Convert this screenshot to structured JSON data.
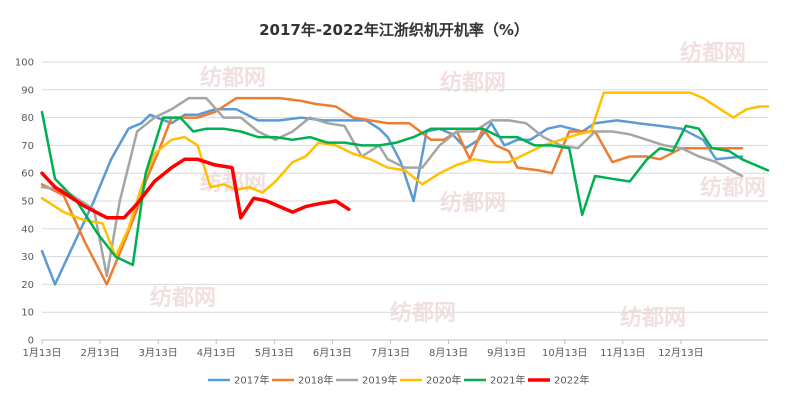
{
  "chart_data": {
    "type": "line",
    "title": "2017年-2022年江浙织机开机率（%）",
    "watermark": "纺都网",
    "ylim": [
      0,
      100
    ],
    "y_ticks": [
      0,
      10,
      20,
      30,
      40,
      50,
      60,
      70,
      80,
      90,
      100
    ],
    "x_ticks": [
      "1月13日",
      "2月13日",
      "3月13日",
      "4月13日",
      "5月13日",
      "6月13日",
      "7月13日",
      "8月13日",
      "9月13日",
      "10月13日",
      "11月13日",
      "12月13日"
    ],
    "grid": true,
    "legend_position": "bottom",
    "series": [
      {
        "name": "2017年",
        "color": "#5b9bd5",
        "width": 2.5,
        "points": [
          [
            0,
            32
          ],
          [
            0.3,
            20
          ],
          [
            1.2,
            50
          ],
          [
            1.6,
            65
          ],
          [
            2.0,
            76
          ],
          [
            2.3,
            78
          ],
          [
            2.5,
            81
          ],
          [
            3.0,
            78
          ],
          [
            3.3,
            81
          ],
          [
            3.6,
            81
          ],
          [
            4.0,
            83
          ],
          [
            4.5,
            83
          ],
          [
            5.0,
            79
          ],
          [
            5.5,
            79
          ],
          [
            6.0,
            80
          ],
          [
            6.5,
            79
          ],
          [
            7.0,
            79
          ],
          [
            7.5,
            79
          ],
          [
            7.8,
            76
          ],
          [
            8.0,
            73
          ],
          [
            8.3,
            64
          ],
          [
            8.6,
            50
          ],
          [
            8.9,
            75
          ],
          [
            9.2,
            76
          ],
          [
            9.5,
            74
          ],
          [
            9.8,
            69
          ],
          [
            10.1,
            72
          ],
          [
            10.4,
            78
          ],
          [
            10.7,
            70
          ],
          [
            11.0,
            72
          ],
          [
            11.3,
            72
          ],
          [
            11.7,
            76
          ],
          [
            12.0,
            77
          ],
          [
            12.5,
            75
          ],
          [
            12.8,
            78
          ],
          [
            13.3,
            79
          ],
          [
            13.8,
            78
          ],
          [
            14.3,
            77
          ],
          [
            14.8,
            76
          ],
          [
            15.3,
            72
          ],
          [
            15.6,
            65
          ],
          [
            16.2,
            66
          ]
        ]
      },
      {
        "name": "2018年",
        "color": "#ed7d31",
        "width": 2.5,
        "points": [
          [
            0,
            56
          ],
          [
            0.5,
            52
          ],
          [
            1.0,
            35
          ],
          [
            1.5,
            20
          ],
          [
            1.9,
            35
          ],
          [
            2.2,
            47
          ],
          [
            2.4,
            57
          ],
          [
            2.7,
            68
          ],
          [
            3.0,
            80
          ],
          [
            3.3,
            80
          ],
          [
            3.6,
            80
          ],
          [
            4.0,
            82
          ],
          [
            4.5,
            87
          ],
          [
            5.0,
            87
          ],
          [
            5.5,
            87
          ],
          [
            6.0,
            86
          ],
          [
            6.3,
            85
          ],
          [
            6.8,
            84
          ],
          [
            7.2,
            80
          ],
          [
            7.6,
            79
          ],
          [
            8.0,
            78
          ],
          [
            8.5,
            78
          ],
          [
            9.0,
            72
          ],
          [
            9.3,
            72
          ],
          [
            9.6,
            75
          ],
          [
            9.9,
            65
          ],
          [
            10.2,
            76
          ],
          [
            10.5,
            70
          ],
          [
            10.8,
            68
          ],
          [
            11.0,
            62
          ],
          [
            11.5,
            61
          ],
          [
            11.8,
            60
          ],
          [
            12.2,
            75
          ],
          [
            12.8,
            75
          ],
          [
            13.2,
            64
          ],
          [
            13.6,
            66
          ],
          [
            14.0,
            66
          ],
          [
            14.3,
            65
          ],
          [
            14.8,
            69
          ],
          [
            15.2,
            69
          ],
          [
            15.6,
            69
          ],
          [
            16.2,
            69
          ]
        ]
      },
      {
        "name": "2019年",
        "color": "#a5a5a5",
        "width": 2.5,
        "points": [
          [
            0,
            55
          ],
          [
            0.5,
            54
          ],
          [
            1.2,
            47
          ],
          [
            1.5,
            23
          ],
          [
            1.8,
            50
          ],
          [
            2.2,
            75
          ],
          [
            2.6,
            80
          ],
          [
            3.0,
            83
          ],
          [
            3.4,
            87
          ],
          [
            3.8,
            87
          ],
          [
            4.2,
            80
          ],
          [
            4.6,
            80
          ],
          [
            5.0,
            75
          ],
          [
            5.4,
            72
          ],
          [
            5.8,
            75
          ],
          [
            6.2,
            80
          ],
          [
            6.6,
            78
          ],
          [
            7.0,
            77
          ],
          [
            7.4,
            66
          ],
          [
            7.8,
            70
          ],
          [
            8.0,
            65
          ],
          [
            8.4,
            62
          ],
          [
            8.8,
            62
          ],
          [
            9.2,
            70
          ],
          [
            9.6,
            75
          ],
          [
            10.0,
            75
          ],
          [
            10.4,
            79
          ],
          [
            10.8,
            79
          ],
          [
            11.2,
            78
          ],
          [
            11.6,
            73
          ],
          [
            12.0,
            70
          ],
          [
            12.4,
            69
          ],
          [
            12.8,
            75
          ],
          [
            13.2,
            75
          ],
          [
            13.6,
            74
          ],
          [
            14.0,
            72
          ],
          [
            14.4,
            70
          ],
          [
            14.8,
            69
          ],
          [
            15.2,
            66
          ],
          [
            15.6,
            64
          ],
          [
            16.2,
            59
          ]
        ]
      },
      {
        "name": "2020年",
        "color": "#ffc000",
        "width": 2.5,
        "points": [
          [
            0,
            51
          ],
          [
            0.5,
            46
          ],
          [
            1.0,
            43
          ],
          [
            1.4,
            42
          ],
          [
            1.7,
            30
          ],
          [
            2.0,
            40
          ],
          [
            2.3,
            55
          ],
          [
            2.6,
            67
          ],
          [
            3.0,
            72
          ],
          [
            3.3,
            73
          ],
          [
            3.6,
            70
          ],
          [
            3.9,
            55
          ],
          [
            4.2,
            56
          ],
          [
            4.5,
            54
          ],
          [
            4.8,
            55
          ],
          [
            5.1,
            53
          ],
          [
            5.4,
            57
          ],
          [
            5.8,
            64
          ],
          [
            6.1,
            66
          ],
          [
            6.4,
            71
          ],
          [
            6.8,
            70
          ],
          [
            7.2,
            67
          ],
          [
            7.6,
            65
          ],
          [
            8.0,
            62
          ],
          [
            8.4,
            61
          ],
          [
            8.8,
            56
          ],
          [
            9.2,
            60
          ],
          [
            9.6,
            63
          ],
          [
            10.0,
            65
          ],
          [
            10.4,
            64
          ],
          [
            10.8,
            64
          ],
          [
            11.2,
            67
          ],
          [
            11.6,
            70
          ],
          [
            12.0,
            72
          ],
          [
            12.4,
            74
          ],
          [
            12.7,
            75
          ],
          [
            13.0,
            89
          ],
          [
            13.5,
            89
          ],
          [
            14.0,
            89
          ],
          [
            14.5,
            89
          ],
          [
            15.0,
            89
          ],
          [
            15.3,
            87
          ],
          [
            15.7,
            83
          ],
          [
            16.0,
            80
          ],
          [
            16.3,
            83
          ],
          [
            16.6,
            84
          ],
          [
            16.8,
            84
          ]
        ]
      },
      {
        "name": "2021年",
        "color": "#00b050",
        "width": 2.5,
        "points": [
          [
            0,
            82
          ],
          [
            0.3,
            58
          ],
          [
            0.8,
            50
          ],
          [
            1.3,
            38
          ],
          [
            1.7,
            30
          ],
          [
            2.1,
            27
          ],
          [
            2.4,
            60
          ],
          [
            2.8,
            80
          ],
          [
            3.2,
            80
          ],
          [
            3.5,
            75
          ],
          [
            3.8,
            76
          ],
          [
            4.2,
            76
          ],
          [
            4.6,
            75
          ],
          [
            5.0,
            73
          ],
          [
            5.4,
            73
          ],
          [
            5.8,
            72
          ],
          [
            6.2,
            73
          ],
          [
            6.6,
            71
          ],
          [
            7.0,
            71
          ],
          [
            7.4,
            70
          ],
          [
            7.8,
            70
          ],
          [
            8.2,
            71
          ],
          [
            8.6,
            73
          ],
          [
            9.0,
            76
          ],
          [
            9.4,
            76
          ],
          [
            9.8,
            76
          ],
          [
            10.2,
            76
          ],
          [
            10.6,
            73
          ],
          [
            11.0,
            73
          ],
          [
            11.4,
            70
          ],
          [
            11.8,
            70
          ],
          [
            12.2,
            69
          ],
          [
            12.5,
            45
          ],
          [
            12.8,
            59
          ],
          [
            13.2,
            58
          ],
          [
            13.6,
            57
          ],
          [
            14.0,
            65
          ],
          [
            14.3,
            69
          ],
          [
            14.6,
            68
          ],
          [
            14.9,
            77
          ],
          [
            15.2,
            76
          ],
          [
            15.5,
            69
          ],
          [
            15.9,
            68
          ],
          [
            16.2,
            65
          ],
          [
            16.5,
            63
          ],
          [
            16.8,
            61
          ]
        ]
      },
      {
        "name": "2022年",
        "color": "#ff0000",
        "width": 3.5,
        "points": [
          [
            0,
            60
          ],
          [
            0.3,
            55
          ],
          [
            1.0,
            48
          ],
          [
            1.5,
            44
          ],
          [
            1.9,
            44
          ],
          [
            2.2,
            49
          ],
          [
            2.6,
            57
          ],
          [
            3.0,
            62
          ],
          [
            3.3,
            65
          ],
          [
            3.6,
            65
          ],
          [
            4.0,
            63
          ],
          [
            4.4,
            62
          ],
          [
            4.6,
            44
          ],
          [
            4.9,
            51
          ],
          [
            5.2,
            50
          ],
          [
            5.5,
            48
          ],
          [
            5.8,
            46
          ],
          [
            6.1,
            48
          ],
          [
            6.4,
            49
          ],
          [
            6.8,
            50
          ],
          [
            7.1,
            47
          ]
        ]
      }
    ]
  }
}
